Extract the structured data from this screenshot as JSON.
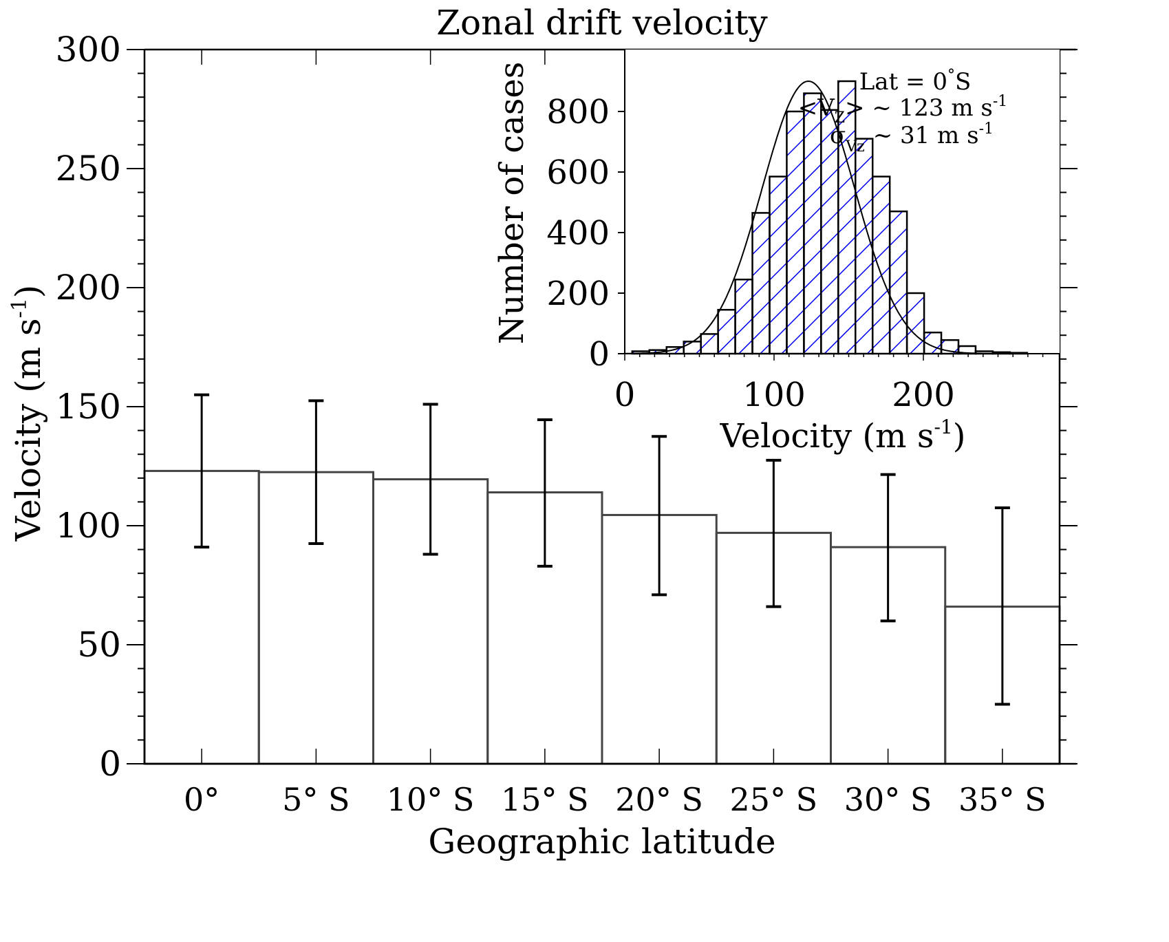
{
  "chart_data": [
    {
      "id": "main",
      "type": "bar",
      "title": "Zonal drift velocity",
      "xlabel": "Geographic latitude",
      "ylabel": "Velocity (m s",
      "ylabel_sup": "-1",
      "ylabel_end": ")",
      "ylim": [
        0,
        300
      ],
      "yticks": [
        0,
        50,
        100,
        150,
        200,
        250,
        300
      ],
      "categories": [
        "0°",
        "5° S",
        "10° S",
        "15° S",
        "20° S",
        "25° S",
        "30° S",
        "35° S"
      ],
      "values": [
        123,
        122.5,
        119.5,
        114,
        104.5,
        97,
        91,
        66
      ],
      "error_upper": [
        155,
        152.5,
        151,
        144.5,
        137.5,
        127.5,
        121.5,
        107.5
      ],
      "error_lower": [
        91,
        92.5,
        88,
        83,
        71,
        66,
        60,
        25
      ],
      "bar_color": "#444444",
      "error_color": "#000000",
      "grid": false
    },
    {
      "id": "inset",
      "type": "bar",
      "subtype": "histogram",
      "xlabel": "Velocity (m s",
      "xlabel_sup": "-1",
      "xlabel_end": ")",
      "ylabel": "Number of cases",
      "xlim": [
        0,
        285
      ],
      "ylim": [
        0,
        950
      ],
      "xticks": [
        0,
        100,
        200
      ],
      "yticks": [
        0,
        200,
        400,
        600,
        800
      ],
      "bin_width": 11.5,
      "bin_starts": [
        5,
        16.5,
        28,
        39.5,
        51,
        62.5,
        74,
        85.5,
        97,
        108.5,
        120,
        131.5,
        143,
        154.5,
        166,
        177.5,
        189,
        200.5,
        212,
        223.5,
        235,
        246.5,
        258
      ],
      "counts": [
        8,
        12,
        22,
        40,
        65,
        145,
        245,
        465,
        585,
        800,
        860,
        805,
        900,
        710,
        585,
        470,
        200,
        70,
        45,
        25,
        8,
        5,
        3
      ],
      "fit": {
        "type": "gaussian",
        "mean": 123,
        "sigma": 31,
        "peak": 900
      },
      "hatch_color": "#0000ee",
      "annotations": {
        "line1": "Lat = 0",
        "line1_deg": "°",
        "line1_end": "S",
        "line2_pre": "<V",
        "line2_sub": "Z",
        "line2_post": "> ~ 123 m s",
        "line2_sup": "-1",
        "line3_sigma": "σ",
        "line3_sub": "Vz",
        "line3_post": "~ 31 m s",
        "line3_sup": "-1"
      }
    }
  ]
}
